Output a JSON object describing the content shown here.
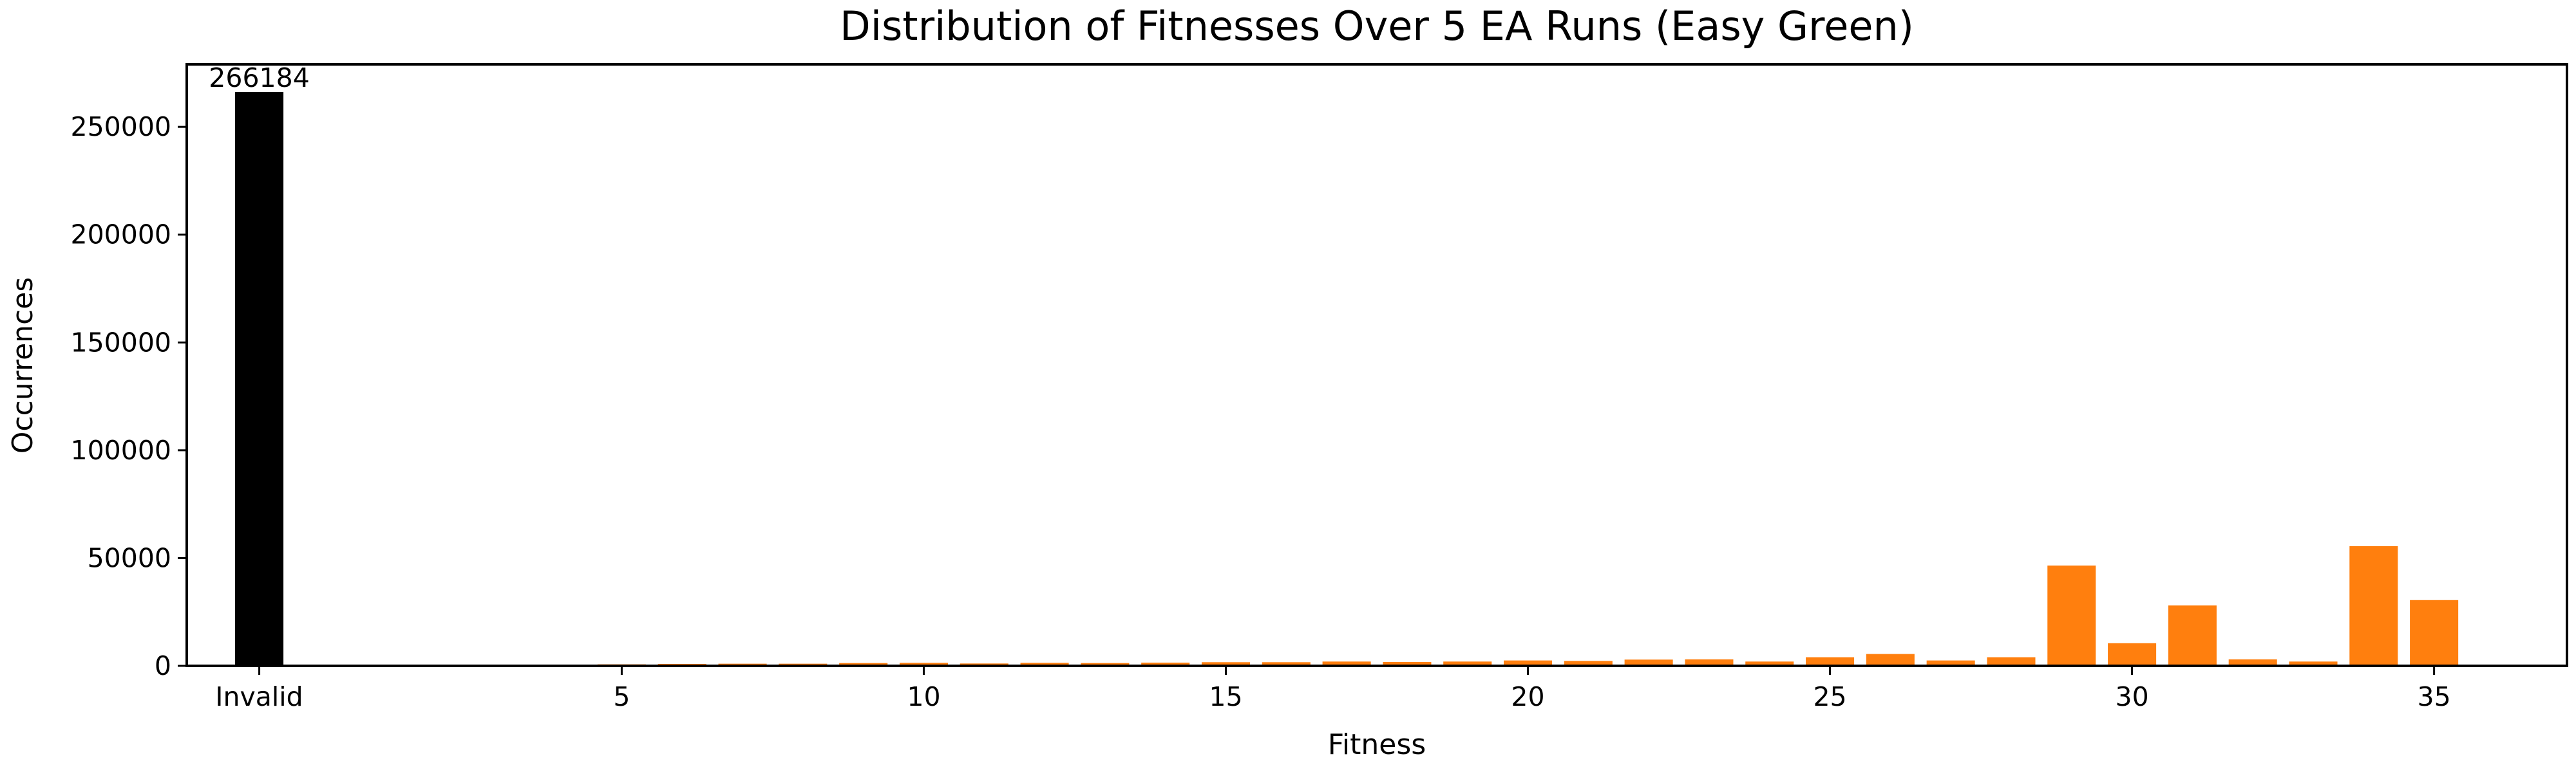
{
  "chart_data": {
    "type": "bar",
    "title": "Distribution of Fitnesses Over 5 EA Runs (Easy Green)",
    "xlabel": "Fitness",
    "ylabel": "Occurrences",
    "xlim": [
      -2.2,
      37.2
    ],
    "ylim": [
      0,
      279000
    ],
    "xticks": [
      {
        "value": -1,
        "label": "Invalid"
      },
      {
        "value": 5,
        "label": "5"
      },
      {
        "value": 10,
        "label": "10"
      },
      {
        "value": 15,
        "label": "15"
      },
      {
        "value": 20,
        "label": "20"
      },
      {
        "value": 25,
        "label": "25"
      },
      {
        "value": 30,
        "label": "30"
      },
      {
        "value": 35,
        "label": "35"
      }
    ],
    "yticks": [
      0,
      50000,
      100000,
      150000,
      200000,
      250000
    ],
    "grid": false,
    "legend": "none",
    "colors": {
      "invalid": "#000000",
      "valid": "#ff7f0e"
    },
    "invalid_bar": {
      "x": -1,
      "label": "Invalid",
      "value": 266184,
      "data_label": "266184"
    },
    "bars": [
      {
        "x": 1,
        "value": 100
      },
      {
        "x": 2,
        "value": 150
      },
      {
        "x": 3,
        "value": 200
      },
      {
        "x": 4,
        "value": 300
      },
      {
        "x": 5,
        "value": 700
      },
      {
        "x": 6,
        "value": 900
      },
      {
        "x": 7,
        "value": 1000
      },
      {
        "x": 8,
        "value": 1000
      },
      {
        "x": 9,
        "value": 1300
      },
      {
        "x": 10,
        "value": 1400
      },
      {
        "x": 11,
        "value": 1100
      },
      {
        "x": 12,
        "value": 1400
      },
      {
        "x": 13,
        "value": 1300
      },
      {
        "x": 14,
        "value": 1500
      },
      {
        "x": 15,
        "value": 1700
      },
      {
        "x": 16,
        "value": 1700
      },
      {
        "x": 17,
        "value": 2000
      },
      {
        "x": 18,
        "value": 1800
      },
      {
        "x": 19,
        "value": 2000
      },
      {
        "x": 20,
        "value": 2500
      },
      {
        "x": 21,
        "value": 2300
      },
      {
        "x": 22,
        "value": 2900
      },
      {
        "x": 23,
        "value": 3000
      },
      {
        "x": 24,
        "value": 2000
      },
      {
        "x": 25,
        "value": 4000
      },
      {
        "x": 26,
        "value": 5500
      },
      {
        "x": 27,
        "value": 2500
      },
      {
        "x": 28,
        "value": 4000
      },
      {
        "x": 29,
        "value": 46500
      },
      {
        "x": 30,
        "value": 10500
      },
      {
        "x": 31,
        "value": 28000
      },
      {
        "x": 32,
        "value": 3000
      },
      {
        "x": 33,
        "value": 2000
      },
      {
        "x": 34,
        "value": 55500
      },
      {
        "x": 35,
        "value": 30500
      }
    ]
  }
}
